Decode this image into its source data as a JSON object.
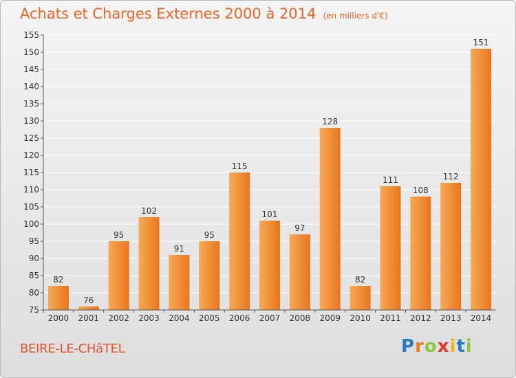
{
  "title": "Achats et Charges Externes 2000 à 2014",
  "subtitle": "(en milliers d'€)",
  "place": "BEIRE-LE-CHâTEL",
  "logo": {
    "letters": [
      "P",
      "r",
      "o",
      "x",
      "i",
      "t",
      "i"
    ],
    "colors": [
      "#2b78c6",
      "#f07d1b",
      "#8cc63f",
      "#e6352b",
      "#f2b615",
      "#2b78c6",
      "#8cc63f"
    ]
  },
  "colors": {
    "title": "#f06522",
    "bar_light": "#f7a955",
    "bar_dark": "#e8761e",
    "grid": "#ffffff",
    "place": "#e5542b"
  },
  "chart_data": {
    "type": "bar",
    "categories": [
      "2000",
      "2001",
      "2002",
      "2003",
      "2004",
      "2005",
      "2006",
      "2007",
      "2008",
      "2009",
      "2010",
      "2011",
      "2012",
      "2013",
      "2014"
    ],
    "values": [
      82,
      76,
      95,
      102,
      91,
      95,
      115,
      101,
      97,
      128,
      82,
      111,
      108,
      112,
      151
    ],
    "ylim": [
      75,
      155
    ],
    "yticks": [
      75,
      80,
      85,
      90,
      95,
      100,
      105,
      110,
      115,
      120,
      125,
      130,
      135,
      140,
      145,
      150,
      155
    ],
    "grid": true,
    "data_labels": true
  }
}
